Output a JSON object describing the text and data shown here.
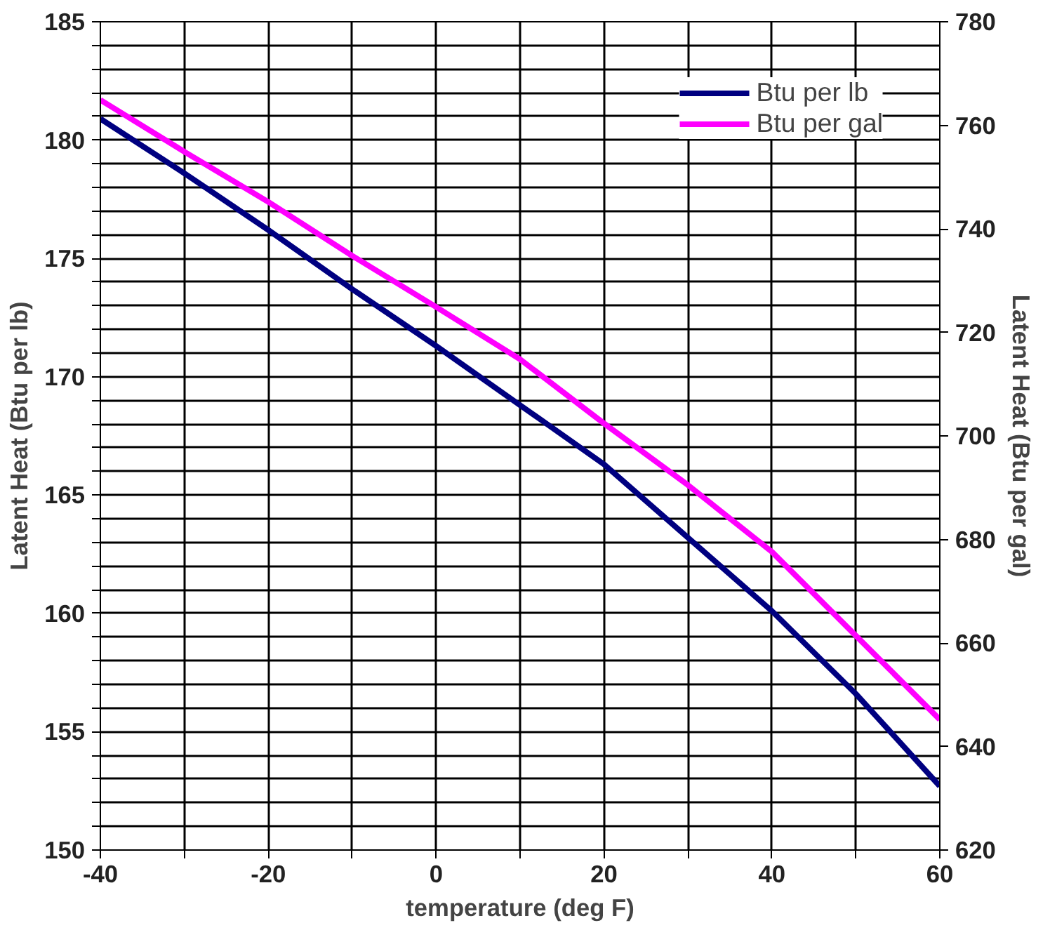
{
  "chart_data": {
    "type": "line",
    "xlabel": "temperature (deg F)",
    "ylabel": "Latent Heat (Btu per lb)",
    "y2label": "Latent Heat (Btu per gal)",
    "x": [
      -40,
      -30,
      -20,
      -10,
      0,
      10,
      20,
      30,
      40,
      50,
      60
    ],
    "series": [
      {
        "name": "Btu per lb",
        "color": "#000080",
        "values": [
          180.9,
          178.6,
          176.2,
          173.7,
          171.3,
          168.8,
          166.3,
          163.2,
          160.1,
          156.6,
          152.7
        ]
      },
      {
        "name": "Btu per gal",
        "color": "#ff00ff",
        "axis": "y2",
        "values": [
          764.9,
          754.9,
          745.2,
          734.8,
          724.9,
          714.8,
          702.4,
          690.5,
          677.6,
          661.4,
          645.2
        ]
      }
    ],
    "xlim": [
      -40,
      60
    ],
    "xticks": [
      -40,
      {
        "value": -30,
        "label": null
      },
      -20,
      {
        "value": -10,
        "label": null
      },
      0,
      {
        "value": 10,
        "label": null
      },
      20,
      {
        "value": 30,
        "label": null
      },
      40,
      {
        "value": 50,
        "label": null
      },
      60
    ],
    "ylim": [
      150,
      185
    ],
    "yticks": [
      150,
      {
        "value": 151,
        "label": null
      },
      {
        "value": 152,
        "label": null
      },
      {
        "value": 153,
        "label": null
      },
      {
        "value": 154,
        "label": null
      },
      155,
      {
        "value": 156,
        "label": null
      },
      {
        "value": 157,
        "label": null
      },
      {
        "value": 158,
        "label": null
      },
      {
        "value": 159,
        "label": null
      },
      160,
      {
        "value": 161,
        "label": null
      },
      {
        "value": 162,
        "label": null
      },
      {
        "value": 163,
        "label": null
      },
      {
        "value": 164,
        "label": null
      },
      165,
      {
        "value": 166,
        "label": null
      },
      {
        "value": 167,
        "label": null
      },
      {
        "value": 168,
        "label": null
      },
      {
        "value": 169,
        "label": null
      },
      170,
      {
        "value": 171,
        "label": null
      },
      {
        "value": 172,
        "label": null
      },
      {
        "value": 173,
        "label": null
      },
      {
        "value": 174,
        "label": null
      },
      175,
      {
        "value": 176,
        "label": null
      },
      {
        "value": 177,
        "label": null
      },
      {
        "value": 178,
        "label": null
      },
      {
        "value": 179,
        "label": null
      },
      180,
      {
        "value": 181,
        "label": null
      },
      {
        "value": 182,
        "label": null
      },
      {
        "value": 183,
        "label": null
      },
      {
        "value": 184,
        "label": null
      },
      185
    ],
    "y2lim": [
      620,
      780
    ],
    "y2ticks": [
      620,
      640,
      660,
      680,
      700,
      720,
      740,
      760,
      780
    ],
    "grid": true,
    "legend": "top right",
    "marker": "none",
    "line_style": "solid"
  }
}
